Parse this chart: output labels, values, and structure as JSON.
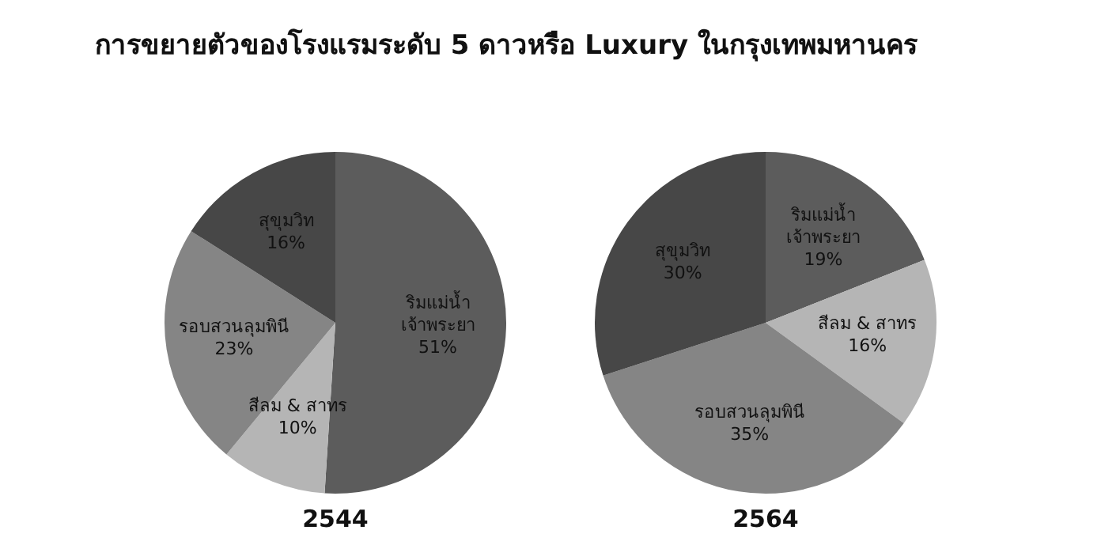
{
  "chart_data": [
    {
      "type": "pie",
      "title": "การขยายตัวของโรงแรมระดับ 5 ดาวหรือ Luxury ในกรุงเทพมหานคร",
      "xlabel": "2544",
      "categories": [
        "ริมแม่น้ำเจ้าพระยา",
        "สีลม & สาทร",
        "รอบสวนลุมพินี",
        "สุขุมวิท"
      ],
      "values": [
        51,
        10,
        23,
        16
      ],
      "value_labels": [
        "51%",
        "10%",
        "23%",
        "16%"
      ],
      "colors": [
        "#5c5c5c",
        "#b5b5b5",
        "#858585",
        "#474747"
      ],
      "legend": false
    },
    {
      "type": "pie",
      "xlabel": "2564",
      "categories": [
        "ริมแม่น้ำเจ้าพระยา",
        "สีลม & สาทร",
        "รอบสวนลุมพินี",
        "สุขุมวิท"
      ],
      "values": [
        19,
        16,
        35,
        30
      ],
      "value_labels": [
        "19%",
        "16%",
        "35%",
        "30%"
      ],
      "colors": [
        "#5c5c5c",
        "#b5b5b5",
        "#858585",
        "#474747"
      ],
      "legend": false
    }
  ]
}
